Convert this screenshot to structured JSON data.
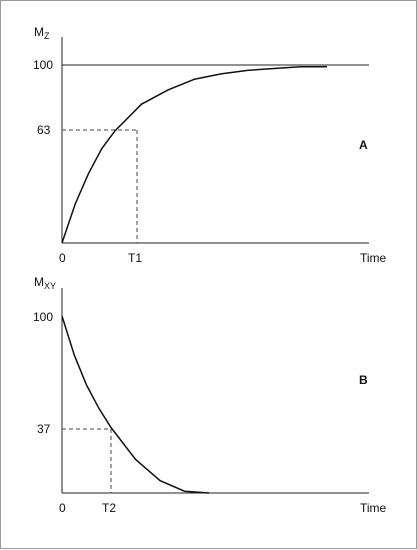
{
  "chart_data": [
    {
      "type": "line",
      "panel_label": "A",
      "ylabel": "M",
      "ylabel_subscript": "Z",
      "xlabel": "Time",
      "x_ticks": [
        "0",
        "T1",
        "Time"
      ],
      "y_ticks": [
        "63",
        "100"
      ],
      "reference_value": 100,
      "marker": {
        "x_label": "T1",
        "y": 63
      },
      "series": [
        {
          "name": "",
          "x": [
            0,
            0.25,
            0.5,
            0.75,
            1,
            1.5,
            2,
            2.5,
            3,
            3.5,
            4,
            4.5,
            5
          ],
          "y": [
            0,
            22,
            39,
            53,
            63,
            78,
            86,
            92,
            95,
            97,
            98,
            99,
            99
          ]
        }
      ],
      "grid": false
    },
    {
      "type": "line",
      "panel_label": "B",
      "ylabel": "M",
      "ylabel_subscript": "XY",
      "xlabel": "Time",
      "x_ticks": [
        "0",
        "T2",
        "Time"
      ],
      "y_ticks": [
        "37",
        "100"
      ],
      "marker": {
        "x_label": "T2",
        "y": 37
      },
      "series": [
        {
          "name": "",
          "x": [
            0,
            0.25,
            0.5,
            0.75,
            1,
            1.5,
            2,
            2.5,
            3
          ],
          "y": [
            100,
            78,
            61,
            48,
            37,
            19,
            7,
            1,
            0
          ]
        }
      ],
      "grid": false
    }
  ]
}
